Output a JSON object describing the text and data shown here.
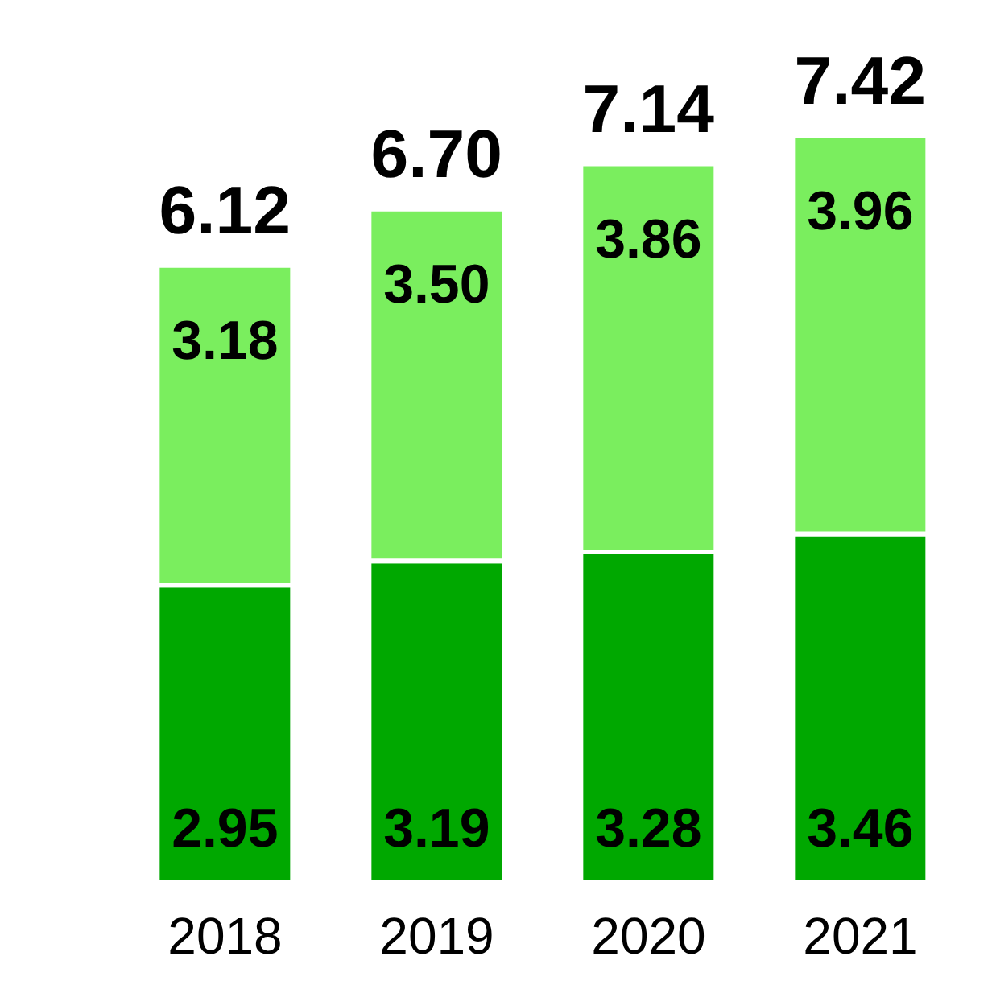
{
  "chart_data": {
    "type": "bar",
    "stacked": true,
    "categories": [
      "2018",
      "2019",
      "2020",
      "2021"
    ],
    "series": [
      {
        "color": "#00a800",
        "values": [
          2.95,
          3.19,
          3.28,
          3.46
        ],
        "value_labels": [
          "2.95",
          "3.19",
          "3.28",
          "3.46"
        ]
      },
      {
        "color": "#7aee5e",
        "values": [
          3.18,
          3.5,
          3.86,
          3.96
        ],
        "value_labels": [
          "3.18",
          "3.50",
          "3.86",
          "3.96"
        ]
      }
    ],
    "totals": [
      "6.12",
      "6.70",
      "7.14",
      "7.42"
    ]
  }
}
